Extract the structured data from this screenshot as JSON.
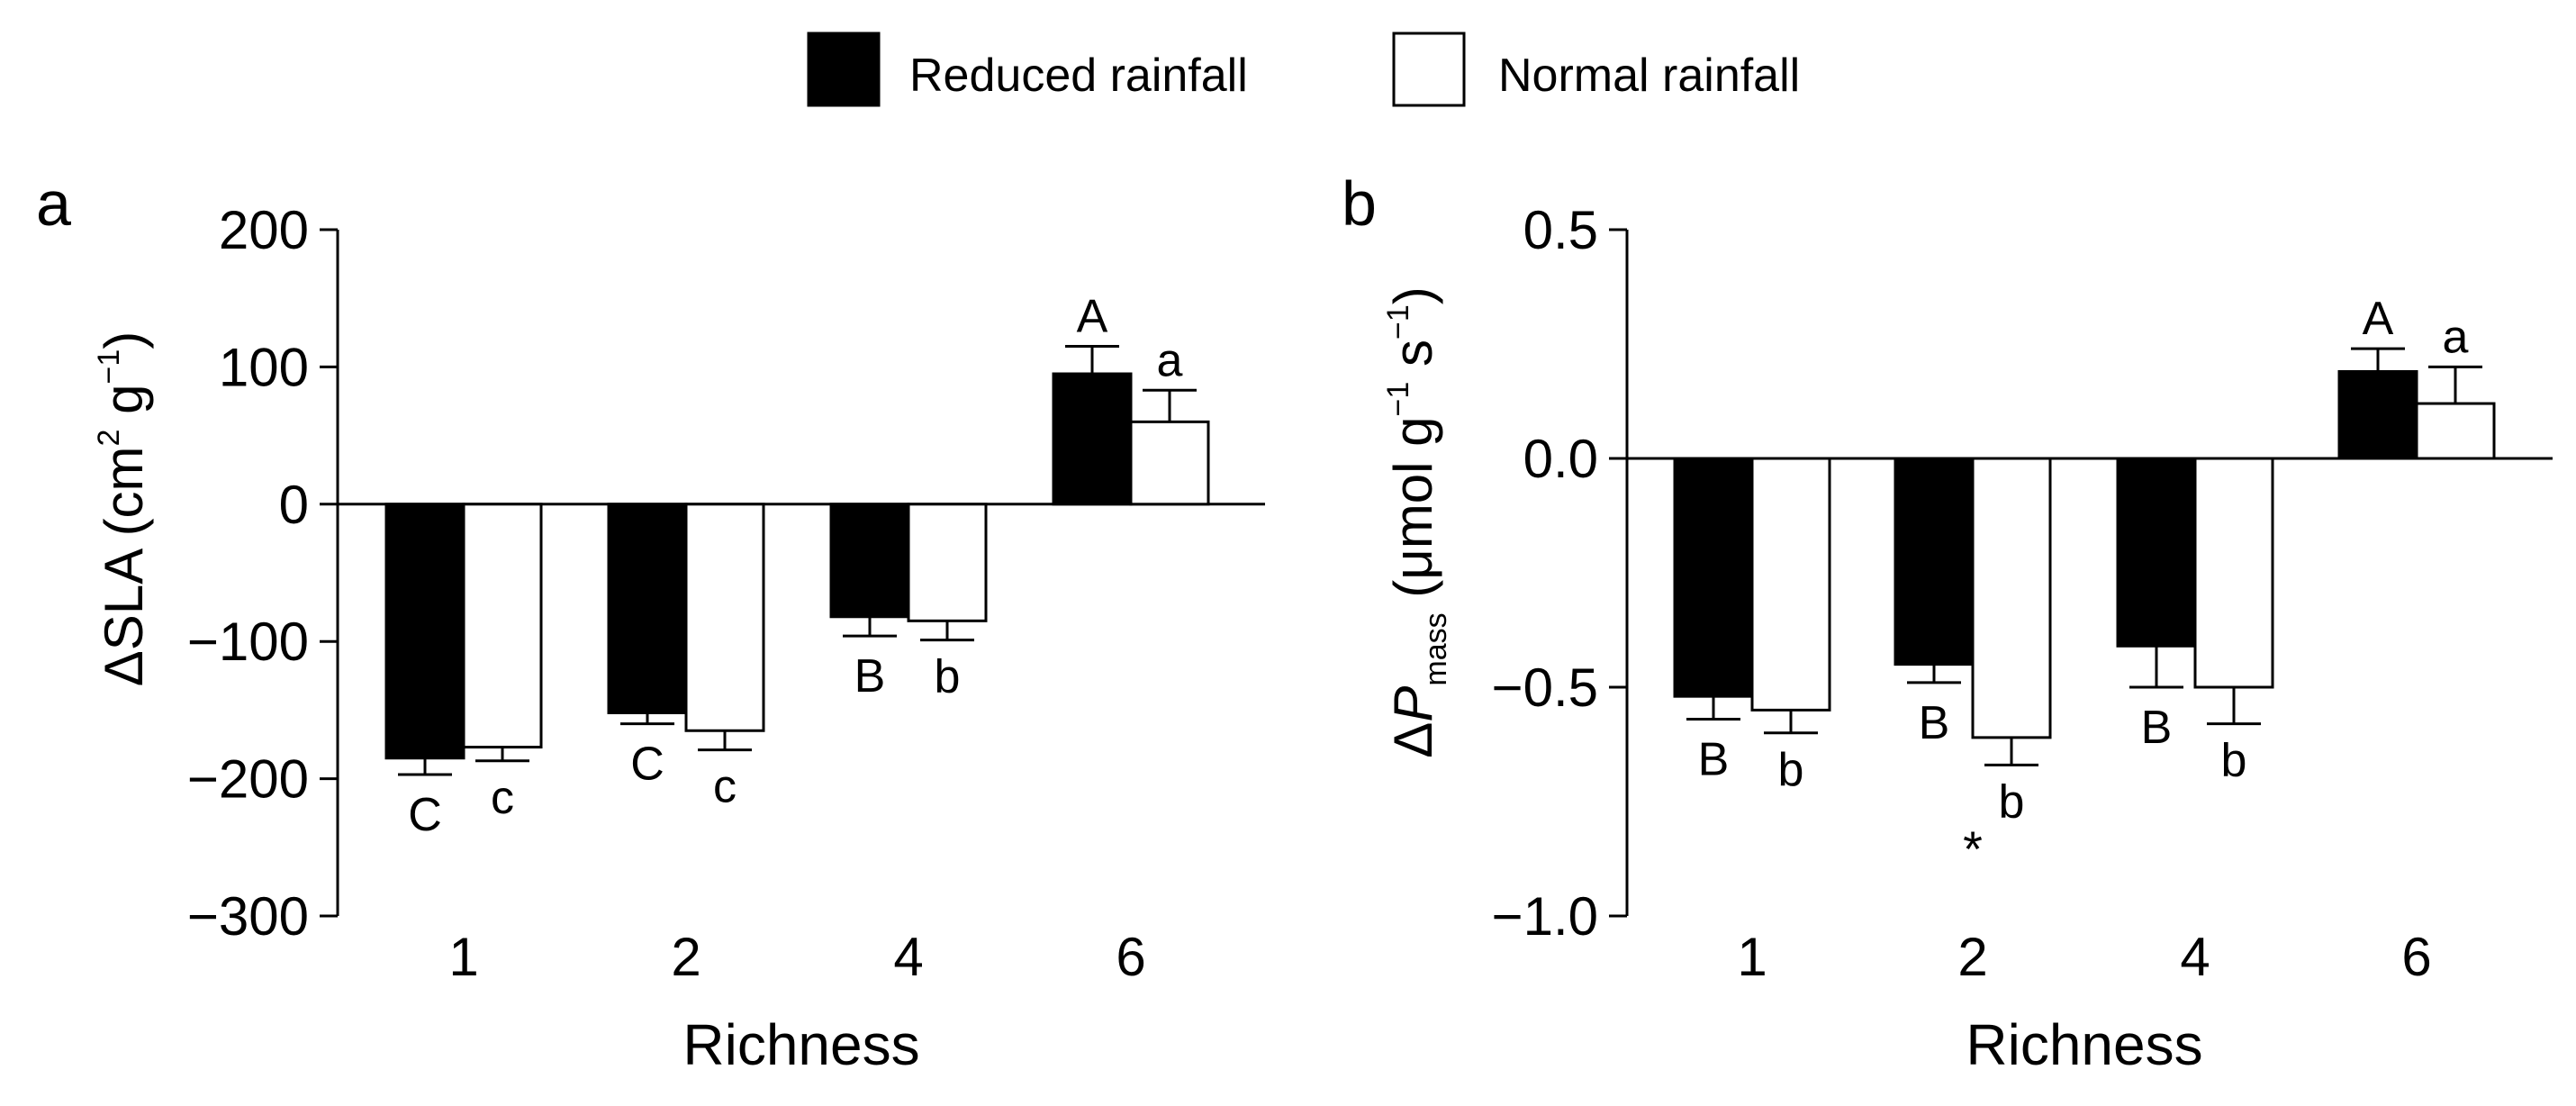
{
  "legend": {
    "items": [
      {
        "label": "Reduced rainfall",
        "color": "#000000"
      },
      {
        "label": "Normal rainfall",
        "color": "#ffffff"
      }
    ]
  },
  "chart_data": [
    {
      "type": "bar",
      "panel_label": "a",
      "title": "",
      "ylabel": "ΔSLA (cm² g⁻¹)",
      "ylabel_parts": {
        "main": "ΔSLA (cm",
        "sup1": "2",
        "mid": " g",
        "sup2": "−1",
        "end": ")"
      },
      "xlabel": "Richness",
      "categories": [
        "1",
        "2",
        "4",
        "6"
      ],
      "ylim": [
        -300,
        200
      ],
      "yticks": [
        200,
        100,
        0,
        -100,
        -200,
        -300
      ],
      "ytick_labels": [
        "200",
        "100",
        "0",
        "−100",
        "−200",
        "−300"
      ],
      "series": [
        {
          "name": "Reduced rainfall",
          "color": "#000000",
          "values": [
            -185,
            -152,
            -82,
            95
          ],
          "errors": [
            12,
            8,
            14,
            20
          ],
          "letters": [
            "C",
            "C",
            "B",
            "A"
          ]
        },
        {
          "name": "Normal rainfall",
          "color": "#ffffff",
          "values": [
            -177,
            -165,
            -85,
            60
          ],
          "errors": [
            10,
            14,
            14,
            23
          ],
          "letters": [
            "c",
            "c",
            "b",
            "a"
          ]
        }
      ],
      "annotations": []
    },
    {
      "type": "bar",
      "panel_label": "b",
      "title": "",
      "ylabel": "ΔPmass (μmol g⁻¹ s⁻¹)",
      "ylabel_parts": {
        "delta": "Δ",
        "p": "P",
        "sub": "mass",
        "rest": " (μmol g",
        "sup1": "−1",
        "mid": " s",
        "sup2": "−1",
        "end": ")"
      },
      "xlabel": "Richness",
      "categories": [
        "1",
        "2",
        "4",
        "6"
      ],
      "ylim": [
        -1.0,
        0.5
      ],
      "yticks": [
        0.5,
        0.0,
        -0.5,
        -1.0
      ],
      "ytick_labels": [
        "0.5",
        "0.0",
        "−0.5",
        "−1.0"
      ],
      "series": [
        {
          "name": "Reduced rainfall",
          "color": "#000000",
          "values": [
            -0.52,
            -0.45,
            -0.41,
            0.19
          ],
          "errors": [
            0.05,
            0.04,
            0.09,
            0.05
          ],
          "letters": [
            "B",
            "B",
            "B",
            "A"
          ]
        },
        {
          "name": "Normal rainfall",
          "color": "#ffffff",
          "values": [
            -0.55,
            -0.61,
            -0.5,
            0.12
          ],
          "errors": [
            0.05,
            0.06,
            0.08,
            0.08
          ],
          "letters": [
            "b",
            "b",
            "b",
            "a"
          ]
        }
      ],
      "annotations": [
        {
          "text": "*",
          "category": "2"
        }
      ]
    }
  ]
}
